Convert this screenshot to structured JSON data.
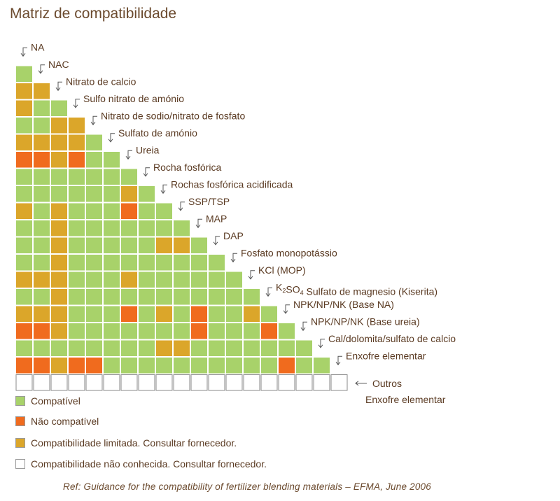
{
  "page": {
    "title": "Matriz de compatibilidade"
  },
  "colors": {
    "compatible": "#a8d26a",
    "not_compatible": "#f06b1e",
    "limited": "#dba62a",
    "unknown": "#ffffff",
    "grid": "#ffffff",
    "label": "#5a3a22",
    "arrow": "#555555"
  },
  "chart_data": {
    "type": "heatmap",
    "title": "Matriz de compatibilidade",
    "legend": [
      {
        "key": "C",
        "label": "Compatível",
        "color": "#a8d26a"
      },
      {
        "key": "N",
        "label": "Não compatível",
        "color": "#f06b1e"
      },
      {
        "key": "L",
        "label": "Compatibilidade limitada. Consultar fornecedor.",
        "color": "#dba62a"
      },
      {
        "key": "U",
        "label": "Compatibilidade não conhecida. Consultar fornecedor.",
        "color": "#ffffff"
      }
    ],
    "rows": [
      {
        "label": "NA",
        "cells": []
      },
      {
        "label": "NAC",
        "cells": [
          "C"
        ]
      },
      {
        "label": "Nitrato de calcio",
        "cells": [
          "L",
          "L"
        ]
      },
      {
        "label": "Sulfo nitrato de amónio",
        "cells": [
          "L",
          "C",
          "C"
        ]
      },
      {
        "label": "Nitrato de sodio/nitrato de fosfato",
        "cells": [
          "C",
          "C",
          "L",
          "L"
        ]
      },
      {
        "label": "Sulfato de amónio",
        "cells": [
          "L",
          "L",
          "L",
          "L",
          "C"
        ]
      },
      {
        "label": "Ureia",
        "cells": [
          "N",
          "N",
          "L",
          "N",
          "C",
          "C"
        ]
      },
      {
        "label": "Rocha fosfórica",
        "cells": [
          "C",
          "C",
          "C",
          "C",
          "C",
          "C",
          "C"
        ]
      },
      {
        "label": "Rochas fosfórica acidificada",
        "cells": [
          "C",
          "C",
          "C",
          "C",
          "C",
          "C",
          "L",
          "C"
        ]
      },
      {
        "label": "SSP/TSP",
        "label_main": "SSP/TSP",
        "cells": [
          "L",
          "C",
          "L",
          "C",
          "C",
          "C",
          "N",
          "C",
          "C"
        ]
      },
      {
        "label": "MAP",
        "cells": [
          "C",
          "C",
          "L",
          "C",
          "C",
          "C",
          "C",
          "C",
          "C",
          "C"
        ]
      },
      {
        "label": "DAP",
        "cells": [
          "C",
          "C",
          "L",
          "C",
          "C",
          "C",
          "C",
          "C",
          "L",
          "L",
          "C"
        ]
      },
      {
        "label": "Fosfato monopotássio",
        "cells": [
          "C",
          "C",
          "L",
          "C",
          "C",
          "C",
          "C",
          "C",
          "C",
          "C",
          "C",
          "C"
        ]
      },
      {
        "label": "KCl (MOP)",
        "cells": [
          "L",
          "L",
          "L",
          "C",
          "C",
          "C",
          "L",
          "C",
          "C",
          "C",
          "C",
          "C",
          "C"
        ]
      },
      {
        "label": "K2SO4 Sulfato de magnesio (Kiserita)",
        "label_main": "Sulfato de magnesio (Kiserita)",
        "formula": {
          "base": "K",
          "sub1": "2",
          "mid": "SO",
          "sub2": "4"
        },
        "cells": [
          "C",
          "C",
          "L",
          "C",
          "C",
          "C",
          "C",
          "C",
          "C",
          "C",
          "C",
          "C",
          "C",
          "C"
        ]
      },
      {
        "label": "NPK/NP/NK (Base NA)",
        "cells": [
          "L",
          "L",
          "L",
          "C",
          "C",
          "C",
          "N",
          "C",
          "L",
          "C",
          "N",
          "C",
          "C",
          "L",
          "C"
        ]
      },
      {
        "label": "NPK/NP/NK (Base ureia)",
        "cells": [
          "N",
          "N",
          "L",
          "C",
          "C",
          "C",
          "C",
          "C",
          "C",
          "C",
          "N",
          "C",
          "C",
          "C",
          "N",
          "C"
        ]
      },
      {
        "label": "Cal/dolomita/sulfato de calcio",
        "cells": [
          "C",
          "C",
          "C",
          "C",
          "C",
          "C",
          "C",
          "C",
          "L",
          "L",
          "C",
          "C",
          "C",
          "C",
          "C",
          "C",
          "C"
        ]
      },
      {
        "label": "Enxofre elementar",
        "cells": [
          "N",
          "N",
          "L",
          "N",
          "N",
          "C",
          "C",
          "C",
          "C",
          "C",
          "C",
          "C",
          "C",
          "C",
          "C",
          "N",
          "C",
          "C"
        ]
      },
      {
        "label": "Outros",
        "cells": [
          "U",
          "U",
          "U",
          "U",
          "U",
          "U",
          "U",
          "U",
          "U",
          "U",
          "U",
          "U",
          "U",
          "U",
          "U",
          "U",
          "U",
          "U",
          "U"
        ]
      }
    ]
  },
  "side_note": "Enxofre elementar",
  "reference": "Ref: Guidance for the compatibility of fertilizer blending materials – EFMA, June 2006"
}
